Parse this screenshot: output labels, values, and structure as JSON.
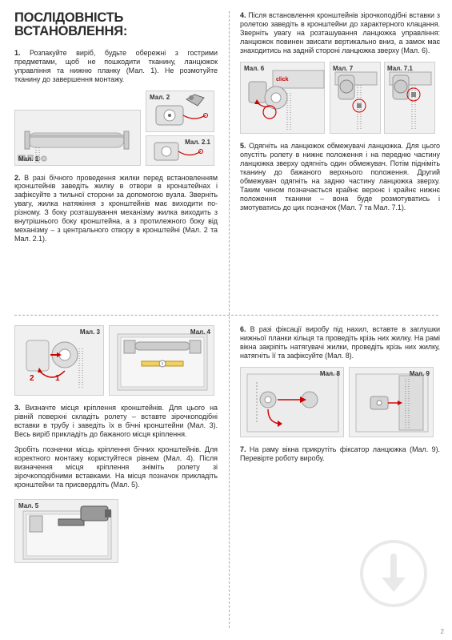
{
  "title": "ПОСЛІДОВНІСТЬ ВСТАНОВЛЕННЯ:",
  "p1": "1. Розпакуйте виріб, будьте обережні з гострими предметами, щоб не пошкодити тканину, ланцюжок управління та нижню планку (Мал. 1). Не розмотуйте тканину до завершення монтажу.",
  "p2": "2. В разі бічного проведення жилки перед встановленням кронштейнів заведіть жилку в отвори в кронштейнах і зафіксуйте з тильної сторони за допомогою вузла. Зверніть увагу, жилка натяжіння з кронштейнів має виходити по-різному. З боку розташування механізму жилка виходить з внутрішнього боку кронштейна, а з протилежного боку від механізму – з центрального отвору в кронштейні (Мал. 2 та Мал. 2.1).",
  "p3": "3. Визначте місця кріплення кронштейнів. Для цього на рівній поверхні складіть ролету – вставте зірочкоподібні вставки в трубу і заведіть їх в бічні кронштейни (Мал. 3). Весь виріб прикладіть до бажаного місця кріплення.",
  "p3b": "Зробіть позначки місць кріплення бічних кронштейнів. Для коректного монтажу користуйтеся рівнем (Мал. 4). Після визначення місця кріплення зніміть ролету зі зірочкоподібними вставками. На місця позначок прикладіть кронштейни та присвердліть (Мал. 5).",
  "p4": "4. Після встановлення кронштейнів зірочкоподібні вставки з ролетою заведіть в кронштейни до характерного клацання. Зверніть увагу на розташування ланцюжка управління: ланцюжок повинен звисати вертикально вниз, а замок має знаходитись на задній стороні ланцюжка зверху (Мал. 6).",
  "p5": "5. Одягніть на ланцюжок обмежувачі ланцюжка. Для цього опустіть ролету в нижнє положення і на передню частину ланцюжка зверху одягніть один обмежувач. Потім підніміть тканину до бажаного верхнього положення. Другий обмежувач одягніть на задню частину ланцюжка зверху. Таким чином позначається крайнє верхнє і крайнє нижнє положення тканини – вона буде розмотуватись і змотуватись до цих позначок (Мал. 7 та Мал. 7.1).",
  "p6": "6. В разі фіксації виробу під нахил, вставте в заглушки нижньої планки кільця та проведіть крізь них жилку. На рамі вікна закріпіть натягувачі жилки, проведіть крізь них жилку, натягніть її та зафіксуйте (Мал. 8).",
  "p7": "7. На раму вікна прикрутіть фіксатор ланцюжка (Мал. 9). Перевірте роботу виробу.",
  "labels": {
    "m1": "Мал. 1",
    "m2": "Мал. 2",
    "m21": "Мал. 2.1",
    "m3": "Мал. 3",
    "m4": "Мал. 4",
    "m5": "Мал. 5",
    "m6": "Мал. 6",
    "m7": "Мал. 7",
    "m71": "Мал. 7.1",
    "m8": "Мал. 8",
    "m9": "Мал. 9"
  },
  "click": "click",
  "pagenum": "2",
  "colors": {
    "accent": "#c00000",
    "grey": "#e8e8e8",
    "greyDark": "#cccccc",
    "text": "#2a2a2a"
  }
}
